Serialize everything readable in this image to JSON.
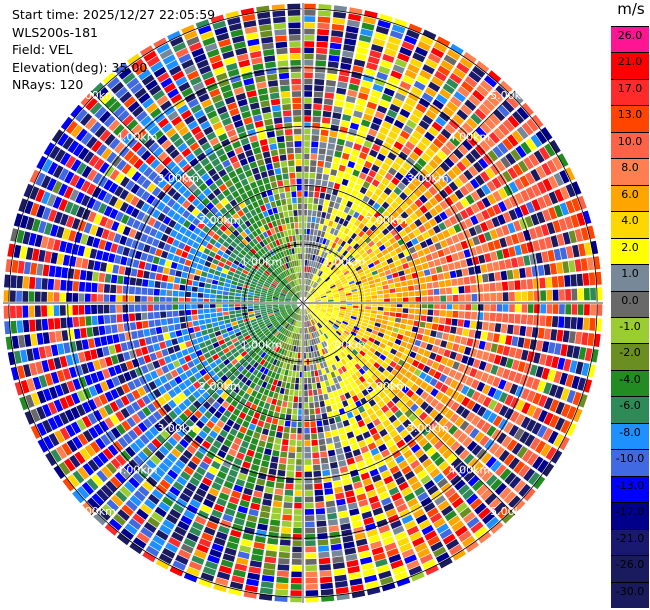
{
  "header": {
    "start_time": "Start time: 2025/12/27 22:05:59",
    "instrument": "WLS200s-181",
    "field": "Field: VEL",
    "elevation": "Elevation(deg): 35.00",
    "nrays": "NRays: 120"
  },
  "colorbar": {
    "unit": "m/s",
    "levels": [
      {
        "label": "26.0",
        "color": "#ff1493"
      },
      {
        "label": "21.0",
        "color": "#ff0000"
      },
      {
        "label": "17.0",
        "color": "#ff2a2a"
      },
      {
        "label": "13.0",
        "color": "#ff4500"
      },
      {
        "label": "10.0",
        "color": "#ff6347"
      },
      {
        "label": "8.0",
        "color": "#ff7f50"
      },
      {
        "label": "6.0",
        "color": "#ffa500"
      },
      {
        "label": "4.0",
        "color": "#ffd700"
      },
      {
        "label": "2.0",
        "color": "#ffff00"
      },
      {
        "label": "1.0",
        "color": "#778899"
      },
      {
        "label": "0.0",
        "color": "#696969"
      },
      {
        "label": "-1.0",
        "color": "#9acd32"
      },
      {
        "label": "-2.0",
        "color": "#6b8e23"
      },
      {
        "label": "-4.0",
        "color": "#228b22"
      },
      {
        "label": "-6.0",
        "color": "#2e8b57"
      },
      {
        "label": "-8.0",
        "color": "#1e90ff"
      },
      {
        "label": "-10.0",
        "color": "#4169e1"
      },
      {
        "label": "-13.0",
        "color": "#0000ff"
      },
      {
        "label": "-17.0",
        "color": "#00008b"
      },
      {
        "label": "-21.0",
        "color": "#191970"
      },
      {
        "label": "-26.0",
        "color": "#1a1a5e"
      },
      {
        "label": "-30.0",
        "color": "#1a1a5e"
      }
    ]
  },
  "chart_data": {
    "type": "heatmap",
    "title": "",
    "field": "VEL",
    "units": "m/s",
    "elevation_deg": 35.0,
    "n_rays": 120,
    "range_rings_km": [
      1.0,
      2.0,
      3.0,
      4.0,
      5.0
    ],
    "ring_labels": [
      "1.00km",
      "2.00km",
      "3.00km",
      "4.00km",
      "5.00km"
    ],
    "max_range_km": 5.1,
    "pattern": {
      "positive_velocity_sector": "east",
      "negative_velocity_sector": "west/south",
      "noise_increases_with_range": true
    }
  }
}
